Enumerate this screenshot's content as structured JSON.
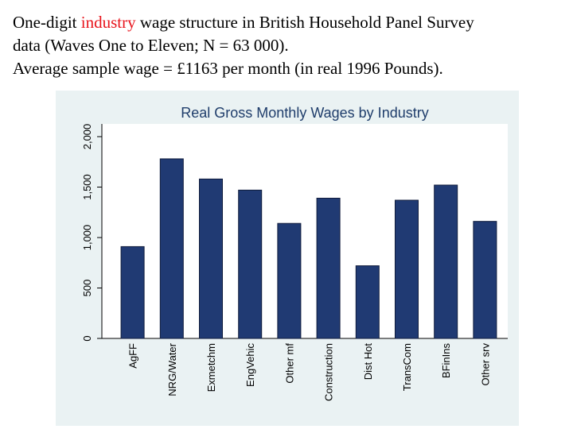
{
  "heading": {
    "line1_before": "One-digit ",
    "line1_accent": "industry",
    "line1_after": " wage structure in British Household Panel Survey",
    "line2": "data (Waves One to Eleven; N = 63 000).",
    "line3": "Average sample wage  = £1163 per month (in real 1996 Pounds)."
  },
  "colors": {
    "bar": "#203a73",
    "accent": "#e8141c",
    "panel": "#eaf2f3",
    "title": "#1f3d6b"
  },
  "chart_data": {
    "type": "bar",
    "title": "Real Gross Monthly Wages by Industry",
    "xlabel": "",
    "ylabel": "",
    "ylim": [
      0,
      2000
    ],
    "yticks": [
      0,
      500,
      1000,
      1500,
      2000
    ],
    "ytick_labels": [
      "0",
      "500",
      "1,000",
      "1,500",
      "2,000"
    ],
    "grid": false,
    "categories": [
      "AgFF",
      "NRG/Water",
      "Exmetchm",
      "EngVehic",
      "Other mf",
      "Construction",
      "Dist Hot",
      "TransCom",
      "BFinIns",
      "Other srv"
    ],
    "values": [
      910,
      1780,
      1580,
      1470,
      1140,
      1390,
      720,
      1370,
      1520,
      1160
    ]
  }
}
